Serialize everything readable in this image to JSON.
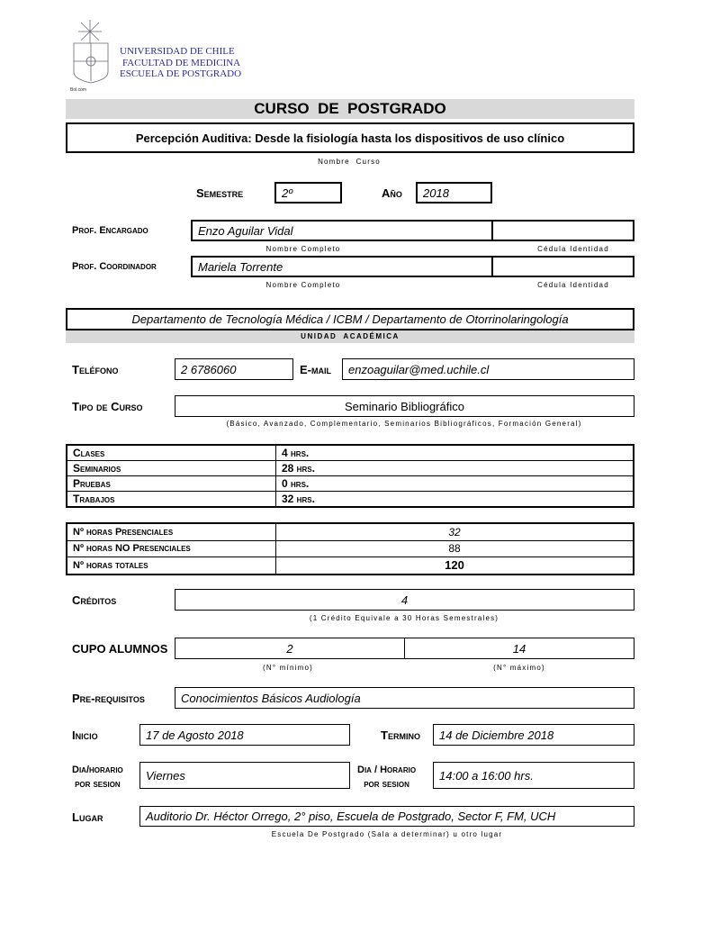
{
  "header": {
    "university": "UNIVERSIDAD DE CHILE",
    "faculty": "FACULTAD DE MEDICINA",
    "school": "ESCUELA DE POSTGRADO",
    "title": "CURSO  DE  POSTGRADO"
  },
  "course": {
    "name": "Percepción Auditiva: Desde la fisiología hasta los dispositivos de uso clínico",
    "name_caption": "Nombre  Curso"
  },
  "semester": {
    "label": "Semestre",
    "value": "2º"
  },
  "year": {
    "label": "Año",
    "value": "2018"
  },
  "prof_encargado": {
    "label": "Prof. Encargado",
    "name": "Enzo Aguilar Vidal",
    "id": "",
    "name_caption": "Nombre Completo",
    "id_caption": "Cédula Identidad"
  },
  "prof_coordinador": {
    "label": "Prof. Coordinador",
    "name": "Mariela Torrente",
    "id": "",
    "name_caption": "Nombre Completo",
    "id_caption": "Cédula Identidad"
  },
  "unit": {
    "value": "Departamento de Tecnología Médica / ICBM / Departamento de Otorrinolaringología",
    "label": "UNIDAD  ACADÉMICA"
  },
  "phone": {
    "label": "Teléfono",
    "value": "2 6786060"
  },
  "email": {
    "label": "E-mail",
    "value": "enzoaguilar@med.uchile.cl"
  },
  "course_type": {
    "label": "Tipo de Curso",
    "value": "Seminario Bibliográfico",
    "caption": "(Básico, Avanzado, Complementario, Seminarios Bibliográficos, Formación General)"
  },
  "hours": [
    {
      "label": "Clases",
      "value": "4  hrs."
    },
    {
      "label": "Seminarios",
      "value": "28  hrs."
    },
    {
      "label": "Pruebas",
      "value": "0 hrs."
    },
    {
      "label": "Trabajos",
      "value": "32 hrs."
    }
  ],
  "totals": [
    {
      "label": "Nº horas Presenciales",
      "value": "32"
    },
    {
      "label": "Nº horas NO Presenciales",
      "value": "88"
    },
    {
      "label": "Nº horas totales",
      "value": "120"
    }
  ],
  "credits": {
    "label": "Créditos",
    "value": "4",
    "caption": "(1 Crédito Equivale a 30 Horas Semestrales)"
  },
  "cupo": {
    "label": "CUPO ALUMNOS",
    "min": "2",
    "max": "14",
    "min_caption": "(N° mínimo)",
    "max_caption": "(N° máximo)"
  },
  "prereq": {
    "label": "Pre-requisitos",
    "value": "Conocimientos Básicos Audiología"
  },
  "inicio": {
    "label": "Inicio",
    "value": "17 de Agosto 2018"
  },
  "termino": {
    "label": "Termino",
    "value": "14 de Diciembre 2018"
  },
  "dia": {
    "label1": "Dia/horario",
    "label2": "por sesion",
    "value": "Viernes"
  },
  "horario": {
    "label1": "Dia / Horario",
    "label2": "por sesion",
    "value": "14:00 a 16:00 hrs."
  },
  "lugar": {
    "label": "Lugar",
    "value": "Auditorio Dr. Héctor Orrego, 2° piso, Escuela de Postgrado, Sector F, FM, UCH",
    "caption": "Escuela De Postgrado (Sala a determinar) u otro lugar"
  }
}
